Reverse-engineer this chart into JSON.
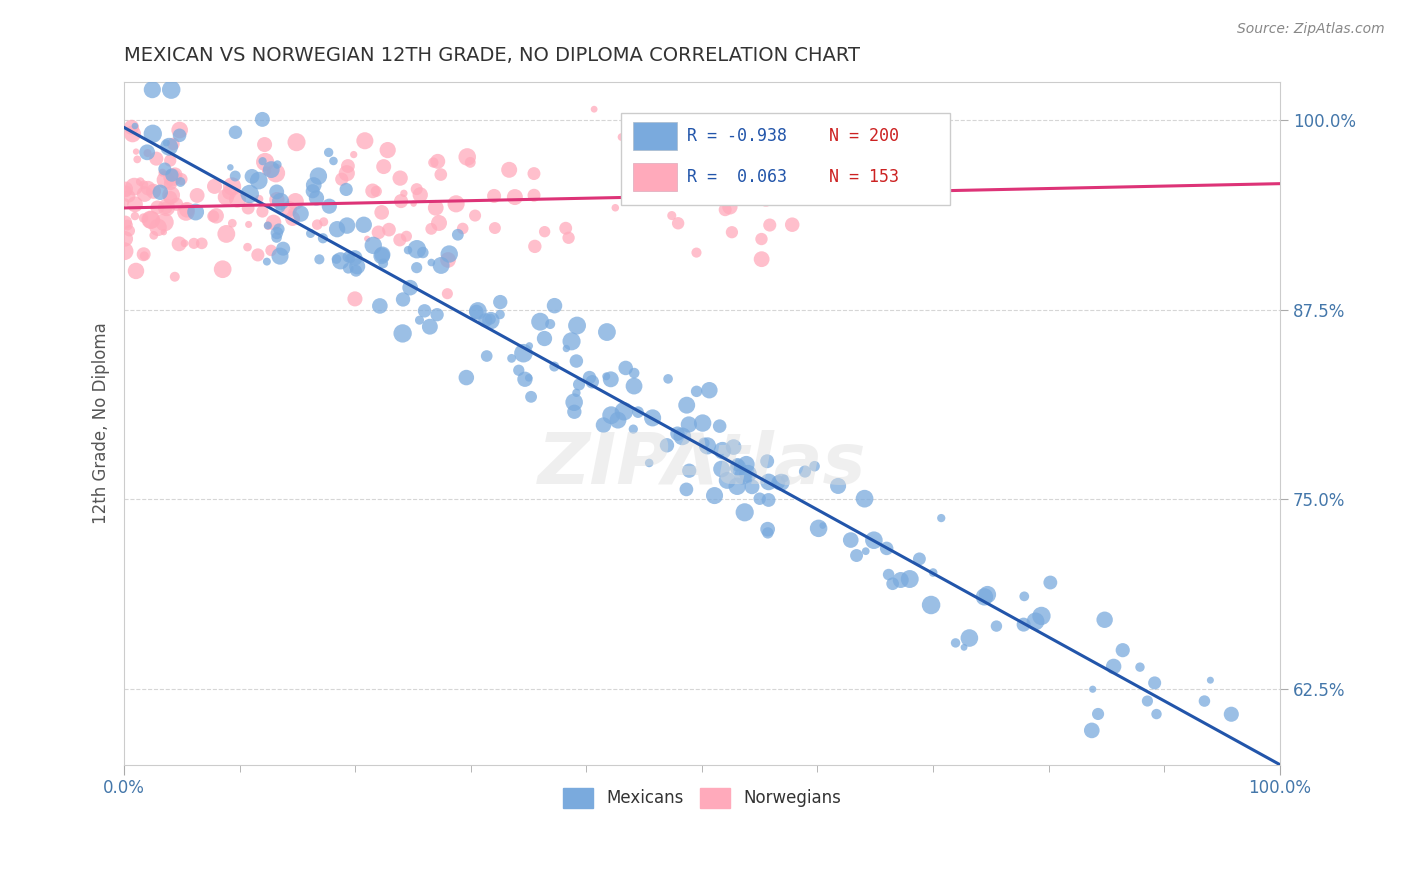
{
  "title": "MEXICAN VS NORWEGIAN 12TH GRADE, NO DIPLOMA CORRELATION CHART",
  "source_text": "Source: ZipAtlas.com",
  "ylabel": "12th Grade, No Diploma",
  "xlim": [
    0.0,
    1.0
  ],
  "ylim": [
    0.575,
    1.025
  ],
  "yticks": [
    0.625,
    0.75,
    0.875,
    1.0
  ],
  "ytick_labels": [
    "62.5%",
    "75.0%",
    "87.5%",
    "100.0%"
  ],
  "legend_R_mexican": "R = -0.938",
  "legend_N_mexican": "N = 200",
  "legend_R_norwegian": "R =  0.063",
  "legend_N_norwegian": "N = 153",
  "blue_color": "#7aaadd",
  "blue_line_color": "#2255aa",
  "pink_color": "#ffaabb",
  "pink_line_color": "#dd3377",
  "watermark": "ZIPAtlas",
  "mexican_N": 200,
  "norwegian_N": 153,
  "background_color": "#ffffff",
  "grid_color": "#cccccc",
  "title_color": "#333333",
  "label_color": "#4477aa",
  "mex_line_start": 0.995,
  "mex_line_end": 0.575,
  "nor_line_start": 0.942,
  "nor_line_end": 0.958
}
